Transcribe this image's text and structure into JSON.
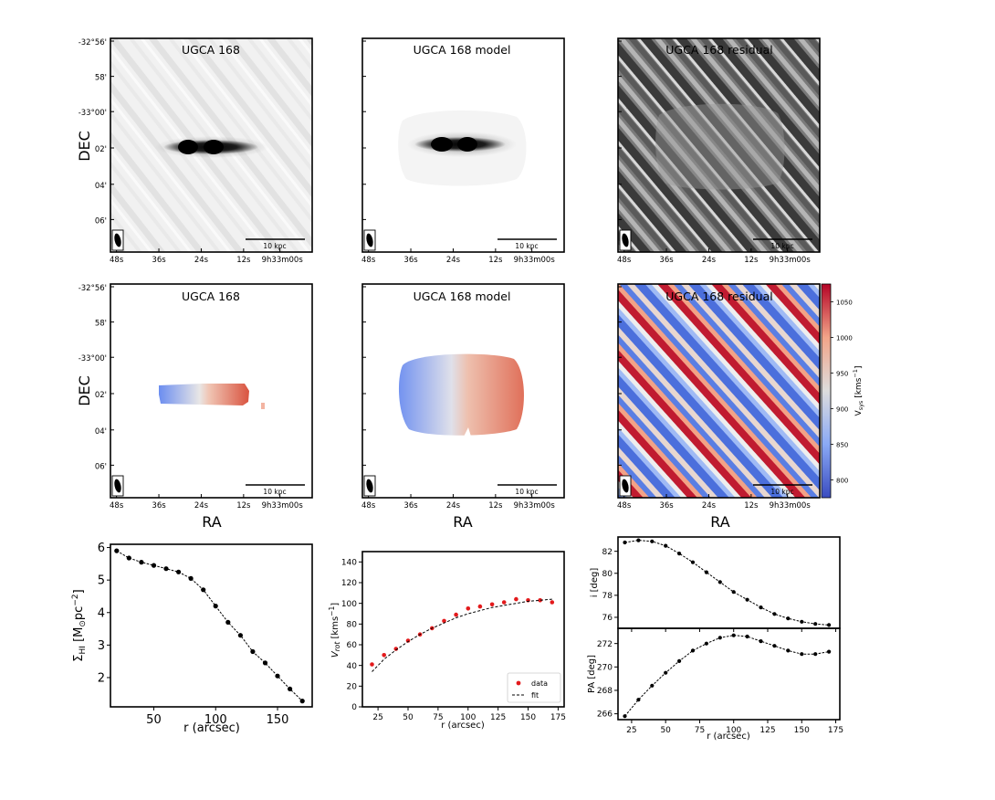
{
  "colors": {
    "moment0_dark": "#0a0a0a",
    "velocity_blue": "#4a6fe3",
    "velocity_white": "#f2f0ee",
    "velocity_red": "#c1162a",
    "data_points_red": "#e31a1c"
  },
  "maps": {
    "row1": [
      {
        "title": "UGCA 168",
        "kind": "moment0-data"
      },
      {
        "title": "UGCA 168 model",
        "kind": "moment0-model"
      },
      {
        "title": "UGCA 168 residual",
        "kind": "moment0-residual"
      }
    ],
    "row2": [
      {
        "title": "UGCA 168",
        "kind": "velocity-data"
      },
      {
        "title": "UGCA 168 model",
        "kind": "velocity-model"
      },
      {
        "title": "UGCA 168 residual",
        "kind": "velocity-residual"
      }
    ],
    "dec_label": "DEC",
    "ra_label": "RA",
    "dec_ticks": [
      "-32°56'",
      "58'",
      "-33°00'",
      "02'",
      "04'",
      "06'"
    ],
    "ra_ticks": [
      "48s",
      "36s",
      "24s",
      "12s",
      "9h33m00s"
    ],
    "scalebar_label": "10 kpc",
    "colorbar": {
      "label": "V_sys [kms^-1]",
      "label_main": "V",
      "label_sub": "sys",
      "label_units": " [kms",
      "label_sup": "−1",
      "label_end": "]",
      "ticks": [
        "1050",
        "1000",
        "950",
        "900",
        "850",
        "800"
      ],
      "range": [
        775,
        1075
      ],
      "tick_values": [
        1050,
        1000,
        950,
        900,
        850,
        800
      ]
    }
  },
  "chart_data": [
    {
      "type": "line",
      "name": "surface-density-profile",
      "x": [
        20,
        30,
        40,
        50,
        60,
        70,
        80,
        90,
        100,
        110,
        120,
        130,
        140,
        150,
        160,
        170
      ],
      "y": [
        5.9,
        5.68,
        5.55,
        5.45,
        5.35,
        5.25,
        5.05,
        4.7,
        4.2,
        3.7,
        3.3,
        2.8,
        2.45,
        2.05,
        1.65,
        1.28
      ],
      "xlabel": "r (arcsec)",
      "ylabel": "Σ_HI [M⊙pc^-2]",
      "ylabel_main": "Σ",
      "ylabel_sub": "HI",
      "ylabel_units": " [M",
      "ylabel_sun": "⊙",
      "ylabel_pc": "pc",
      "ylabel_sup": "−2",
      "ylabel_end": "]",
      "xlim": [
        15,
        178
      ],
      "ylim": [
        1.1,
        6.1
      ],
      "xticks": [
        50,
        100,
        150
      ],
      "yticks": [
        2,
        3,
        4,
        5,
        6
      ]
    },
    {
      "type": "scatter",
      "name": "rotation-curve",
      "series": [
        {
          "name": "data",
          "x": [
            20,
            30,
            40,
            50,
            60,
            70,
            80,
            90,
            100,
            110,
            120,
            130,
            140,
            150,
            160,
            170
          ],
          "y": [
            41,
            50,
            56,
            64,
            70,
            76,
            83,
            89,
            95,
            97,
            99,
            101,
            104,
            103,
            103,
            101
          ]
        },
        {
          "name": "fit",
          "x": [
            20,
            30,
            40,
            50,
            60,
            70,
            80,
            90,
            100,
            110,
            120,
            130,
            140,
            150,
            160,
            170
          ],
          "y": [
            34,
            46,
            55,
            63,
            70,
            76,
            81,
            86,
            90,
            93,
            96,
            98,
            100,
            102,
            103,
            104
          ]
        }
      ],
      "xlabel": "r (arcsec)",
      "ylabel": "V_rot [kms^-1]",
      "ylabel_main": "V",
      "ylabel_sub": "rot",
      "ylabel_units": " [kms",
      "ylabel_sup": "−1",
      "ylabel_end": "]",
      "xlim": [
        12,
        180
      ],
      "ylim": [
        0,
        150
      ],
      "xticks": [
        25,
        50,
        75,
        100,
        125,
        150,
        175
      ],
      "yticks": [
        0,
        20,
        40,
        60,
        80,
        100,
        120,
        140
      ],
      "legend": {
        "placement": "bottom-right",
        "data_label": "data",
        "fit_label": "fit"
      }
    },
    {
      "type": "line",
      "name": "inclination-profile",
      "x": [
        20,
        30,
        40,
        50,
        60,
        70,
        80,
        90,
        100,
        110,
        120,
        130,
        140,
        150,
        160,
        170
      ],
      "y": [
        82.8,
        83.0,
        82.9,
        82.5,
        81.8,
        81.0,
        80.1,
        79.2,
        78.3,
        77.6,
        76.9,
        76.3,
        75.9,
        75.6,
        75.4,
        75.3
      ],
      "ylabel": "i [deg]",
      "xlim": [
        15,
        178
      ],
      "ylim": [
        75,
        83.3
      ],
      "yticks": [
        76,
        78,
        80,
        82
      ]
    },
    {
      "type": "line",
      "name": "position-angle-profile",
      "x": [
        20,
        30,
        40,
        50,
        60,
        70,
        80,
        90,
        100,
        110,
        120,
        130,
        140,
        150,
        160,
        170
      ],
      "y": [
        265.8,
        267.2,
        268.4,
        269.5,
        270.5,
        271.4,
        272.0,
        272.5,
        272.7,
        272.6,
        272.2,
        271.8,
        271.4,
        271.1,
        271.1,
        271.3
      ],
      "xlabel": "r (arcsec)",
      "ylabel": "PA [deg]",
      "xlim": [
        15,
        178
      ],
      "ylim": [
        265.5,
        273.3
      ],
      "xticks": [
        25,
        50,
        75,
        100,
        125,
        150,
        175
      ],
      "yticks": [
        266,
        268,
        270,
        272
      ]
    }
  ]
}
